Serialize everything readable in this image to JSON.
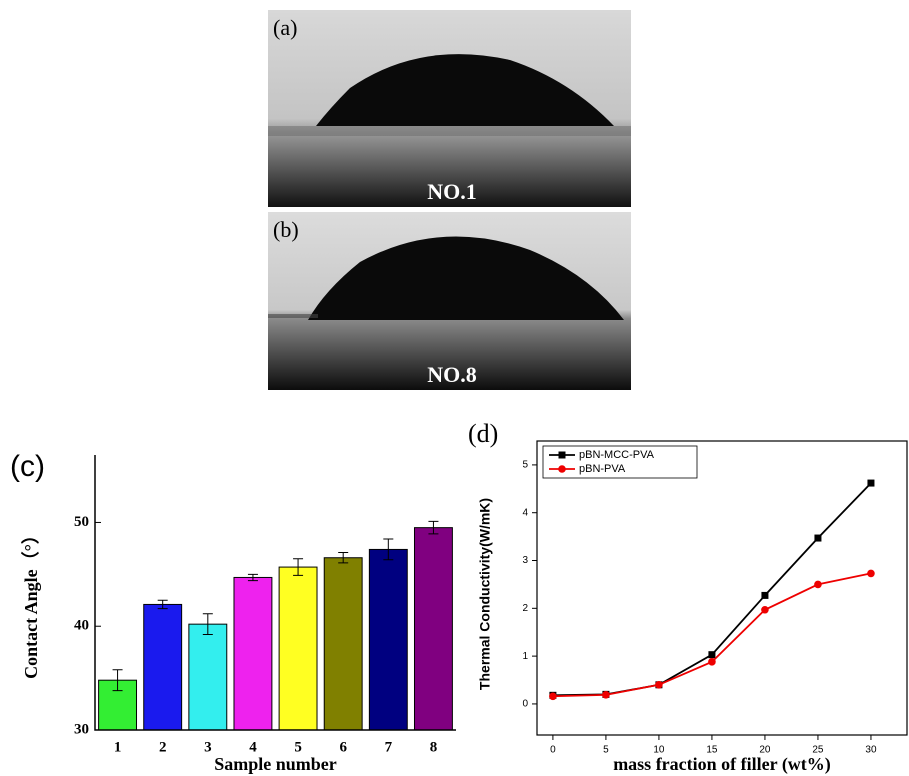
{
  "images": [
    {
      "label": "(a)",
      "caption": "NO.1"
    },
    {
      "label": "(b)",
      "caption": "NO.8"
    }
  ],
  "chart_data": [
    {
      "type": "bar",
      "title": "(c)",
      "ylabel": "Contact Angle（°）",
      "xlabel": "Sample number",
      "categories": [
        "1",
        "2",
        "3",
        "4",
        "5",
        "6",
        "7",
        "8"
      ],
      "values": [
        34.8,
        42.1,
        40.2,
        44.7,
        45.7,
        46.6,
        47.4,
        49.5
      ],
      "errors": [
        1.0,
        0.4,
        1.0,
        0.3,
        0.8,
        0.5,
        1.0,
        0.6
      ],
      "colors": [
        "#33ee33",
        "#1a1aee",
        "#33eeee",
        "#ee22ee",
        "#ffff22",
        "#808000",
        "#000080",
        "#800080"
      ],
      "ylim": [
        30,
        56.5
      ],
      "yticks": [
        30,
        40,
        50
      ],
      "grid": false
    },
    {
      "type": "line",
      "title": "(d)",
      "ylabel": "Thermal Conductivity(W/mK)",
      "xlabel": "mass fraction of filler (wt%)",
      "x": [
        0,
        5,
        10,
        15,
        20,
        25,
        30
      ],
      "series": [
        {
          "name": "pBN-MCC-PVA",
          "color": "#000000",
          "marker": "square",
          "values": [
            0.18,
            0.2,
            0.4,
            1.03,
            2.27,
            3.47,
            4.62
          ]
        },
        {
          "name": "pBN-PVA",
          "color": "#ee0000",
          "marker": "circle",
          "values": [
            0.16,
            0.19,
            0.4,
            0.88,
            1.97,
            2.5,
            2.73
          ]
        }
      ],
      "xlim": [
        -1.5,
        33.4
      ],
      "ylim": [
        -0.65,
        5.5
      ],
      "xticks": [
        0,
        5,
        10,
        15,
        20,
        25,
        30
      ],
      "yticks": [
        0,
        1,
        2,
        3,
        4,
        5
      ],
      "legend": "upper-left",
      "grid": false
    }
  ]
}
